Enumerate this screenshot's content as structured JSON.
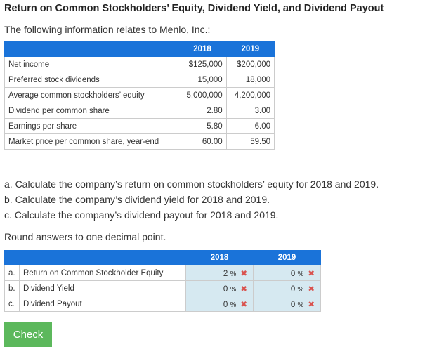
{
  "title": "Return on Common Stockholders’ Equity, Dividend Yield, and Dividend Payout",
  "intro": "The following information relates to Menlo, Inc.:",
  "data_table": {
    "headers": [
      "",
      "2018",
      "2019"
    ],
    "rows": [
      [
        "Net income",
        "$125,000",
        "$200,000"
      ],
      [
        "Preferred stock dividends",
        "15,000",
        "18,000"
      ],
      [
        "Average common stockholders’ equity",
        "5,000,000",
        "4,200,000"
      ],
      [
        "Dividend per common share",
        "2.80",
        "3.00"
      ],
      [
        "Earnings per share",
        "5.80",
        "6.00"
      ],
      [
        "Market price per common share, year-end",
        "60.00",
        "59.50"
      ]
    ]
  },
  "questions": [
    "a. Calculate the company’s return on common stockholders’ equity for 2018 and 2019.",
    "b. Calculate the company’s dividend yield for 2018 and 2019.",
    "c. Calculate the company’s dividend payout for 2018 and 2019."
  ],
  "round_note": "Round answers to one decimal point.",
  "answer_table": {
    "headers": [
      "2018",
      "2019"
    ],
    "rows": [
      {
        "letter": "a.",
        "label": "Return on Common Stockholder Equity",
        "v2018": "2",
        "v2019": "0"
      },
      {
        "letter": "b.",
        "label": "Dividend Yield",
        "v2018": "0",
        "v2019": "0"
      },
      {
        "letter": "c.",
        "label": "Dividend Payout",
        "v2018": "0",
        "v2019": "0"
      }
    ],
    "unit": "%",
    "status_icon": "incorrect-x-icon",
    "status_mark": "✖"
  },
  "check_label": "Check",
  "colors": {
    "header": "#1a73d9",
    "answer_bg": "#d6e9f1",
    "incorrect": "#d9534f",
    "check": "#5cb85c"
  }
}
